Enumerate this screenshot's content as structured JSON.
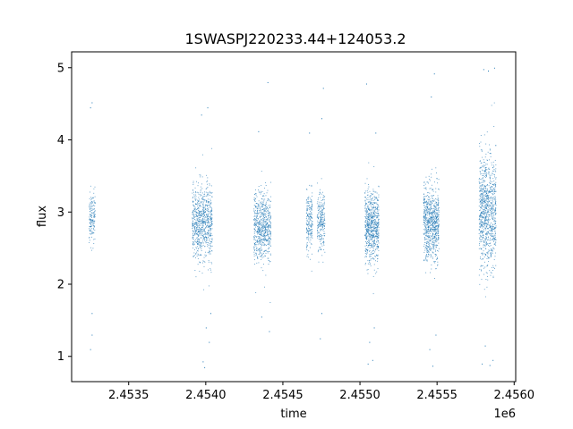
{
  "chart_data": {
    "type": "scatter",
    "title": "1SWASPJ220233.44+124053.2",
    "xlabel": "time",
    "ylabel": "flux",
    "x_offset_label": "1e6",
    "xlim": [
      2.45313,
      2.45601
    ],
    "ylim": [
      0.65,
      5.22
    ],
    "x_ticks": [
      2.4535,
      2.454,
      2.4545,
      2.455,
      2.4555,
      2.456
    ],
    "x_tick_labels": [
      "2.4535",
      "2.4540",
      "2.4545",
      "2.4550",
      "2.4555",
      "2.4560"
    ],
    "y_ticks": [
      1,
      2,
      3,
      4,
      5
    ],
    "y_tick_labels": [
      "1",
      "2",
      "3",
      "4",
      "5"
    ],
    "grid": false,
    "marker_color": "#1f77b4",
    "clusters": [
      {
        "x_start": 2.45324,
        "x_end": 2.45328,
        "core_low": 2.35,
        "core_high": 3.5,
        "density": 0.3,
        "outliers": [
          [
            2.45326,
            4.52
          ],
          [
            2.45325,
            4.45
          ],
          [
            2.45326,
            1.6
          ],
          [
            2.45325,
            1.1
          ],
          [
            2.45326,
            1.3
          ]
        ]
      },
      {
        "x_start": 2.45391,
        "x_end": 2.45404,
        "core_low": 2.05,
        "core_high": 3.7,
        "density": 0.7,
        "outliers": [
          [
            2.45397,
            4.35
          ],
          [
            2.45401,
            4.45
          ],
          [
            2.45399,
            0.85
          ],
          [
            2.45398,
            0.93
          ],
          [
            2.45402,
            1.2
          ],
          [
            2.454,
            1.4
          ],
          [
            2.45403,
            1.6
          ]
        ]
      },
      {
        "x_start": 2.45431,
        "x_end": 2.45442,
        "core_low": 2.05,
        "core_high": 3.55,
        "density": 0.7,
        "outliers": [
          [
            2.4544,
            4.8
          ],
          [
            2.45434,
            4.12
          ],
          [
            2.45441,
            1.35
          ],
          [
            2.45436,
            1.55
          ]
        ]
      },
      {
        "x_start": 2.45465,
        "x_end": 2.45469,
        "core_low": 2.2,
        "core_high": 3.55,
        "density": 0.45,
        "outliers": [
          [
            2.45467,
            4.1
          ]
        ]
      },
      {
        "x_start": 2.45472,
        "x_end": 2.45477,
        "core_low": 2.2,
        "core_high": 3.6,
        "density": 0.45,
        "outliers": [
          [
            2.45476,
            4.72
          ],
          [
            2.45475,
            4.3
          ],
          [
            2.45474,
            1.25
          ],
          [
            2.45475,
            1.6
          ]
        ]
      },
      {
        "x_start": 2.45503,
        "x_end": 2.45512,
        "core_low": 2.0,
        "core_high": 3.65,
        "density": 0.9,
        "outliers": [
          [
            2.45504,
            4.78
          ],
          [
            2.4551,
            4.1
          ],
          [
            2.45505,
            0.9
          ],
          [
            2.45508,
            0.95
          ],
          [
            2.45506,
            1.2
          ],
          [
            2.45509,
            1.4
          ]
        ]
      },
      {
        "x_start": 2.45541,
        "x_end": 2.45551,
        "core_low": 2.0,
        "core_high": 3.7,
        "density": 0.9,
        "outliers": [
          [
            2.45548,
            4.92
          ],
          [
            2.45546,
            4.6
          ],
          [
            2.45547,
            0.87
          ],
          [
            2.45545,
            1.1
          ],
          [
            2.45549,
            1.3
          ]
        ]
      },
      {
        "x_start": 2.45577,
        "x_end": 2.45588,
        "core_low": 1.75,
        "core_high": 4.3,
        "density": 1.0,
        "outliers": [
          [
            2.4558,
            4.98
          ],
          [
            2.45583,
            4.96
          ],
          [
            2.45587,
            5.0
          ],
          [
            2.45579,
            0.9
          ],
          [
            2.45584,
            0.88
          ],
          [
            2.45586,
            0.95
          ],
          [
            2.45581,
            1.15
          ]
        ]
      }
    ]
  }
}
